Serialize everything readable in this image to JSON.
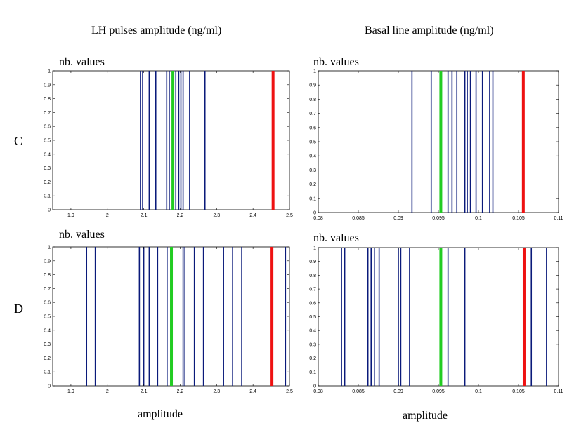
{
  "titles": {
    "left": "LH pulses amplitude  (ng/ml)",
    "right": "Basal line amplitude  (ng/ml)"
  },
  "rows": {
    "top": "C",
    "bottom": "D"
  },
  "xlabels": {
    "left": "amplitude",
    "right": "amplitude"
  },
  "chart_data": [
    {
      "id": "C-left",
      "type": "bar",
      "ylabel": "nb. values",
      "xlim": [
        1.85,
        2.5
      ],
      "ylim": [
        0,
        1
      ],
      "xticks": [
        1.9,
        2.0,
        2.1,
        2.2,
        2.3,
        2.4,
        2.5
      ],
      "xtick_labels": [
        "1.9",
        "2",
        "2.1",
        "2.2",
        "2.3",
        "2.4",
        "2.5"
      ],
      "yticks": [
        0,
        0.1,
        0.2,
        0.3,
        0.4,
        0.5,
        0.6,
        0.7,
        0.8,
        0.9,
        1
      ],
      "ytick_labels": [
        "0",
        "0.1",
        "0.2",
        "0.3",
        "0.4",
        "0.5",
        "0.6",
        "0.7",
        "0.8",
        "0.9",
        "1"
      ],
      "values": [
        2.091,
        2.097,
        2.115,
        2.133,
        2.163,
        2.17,
        2.188,
        2.196,
        2.202,
        2.208,
        2.226,
        2.268
      ],
      "green": 2.18,
      "red": 2.455
    },
    {
      "id": "C-right",
      "type": "bar",
      "ylabel": "nb. values",
      "xlim": [
        0.08,
        0.11
      ],
      "ylim": [
        0,
        1
      ],
      "xticks": [
        0.08,
        0.085,
        0.09,
        0.095,
        0.1,
        0.105,
        0.11
      ],
      "xtick_labels": [
        "0.08",
        "0.085",
        "0.09",
        "0.095",
        "0.1",
        "0.105",
        "0.11"
      ],
      "yticks": [
        0,
        0.1,
        0.2,
        0.3,
        0.4,
        0.5,
        0.6,
        0.7,
        0.8,
        0.9,
        1
      ],
      "ytick_labels": [
        "0",
        "0.1",
        "0.2",
        "0.3",
        "0.4",
        "0.5",
        "0.6",
        "0.7",
        "0.8",
        "0.9",
        "1"
      ],
      "values": [
        0.0917,
        0.0941,
        0.0962,
        0.0967,
        0.0973,
        0.0983,
        0.0986,
        0.099,
        0.0997,
        0.1005,
        0.1014,
        0.1018
      ],
      "green": 0.0953,
      "red": 0.1056
    },
    {
      "id": "D-left",
      "type": "bar",
      "ylabel": "nb. values",
      "xlim": [
        1.85,
        2.5
      ],
      "ylim": [
        0,
        1
      ],
      "xticks": [
        1.9,
        2.0,
        2.1,
        2.2,
        2.3,
        2.4,
        2.5
      ],
      "xtick_labels": [
        "1.9",
        "2",
        "2.1",
        "2.2",
        "2.3",
        "2.4",
        "2.5"
      ],
      "yticks": [
        0,
        0.1,
        0.2,
        0.3,
        0.4,
        0.5,
        0.6,
        0.7,
        0.8,
        0.9,
        1
      ],
      "ytick_labels": [
        "0",
        "0.1",
        "0.2",
        "0.3",
        "0.4",
        "0.5",
        "0.6",
        "0.7",
        "0.8",
        "0.9",
        "1"
      ],
      "values": [
        1.943,
        1.967,
        2.088,
        2.1,
        2.115,
        2.138,
        2.164,
        2.208,
        2.213,
        2.239,
        2.264,
        2.319,
        2.344,
        2.369,
        2.489
      ],
      "green": 2.176,
      "red": 2.452
    },
    {
      "id": "D-right",
      "type": "bar",
      "ylabel": "nb. values",
      "xlim": [
        0.08,
        0.11
      ],
      "ylim": [
        0,
        1
      ],
      "xticks": [
        0.08,
        0.085,
        0.09,
        0.095,
        0.1,
        0.105,
        0.11
      ],
      "xtick_labels": [
        "0.08",
        "0.085",
        "0.09",
        "0.095",
        "0.1",
        "0.105",
        "0.11"
      ],
      "yticks": [
        0,
        0.1,
        0.2,
        0.3,
        0.4,
        0.5,
        0.6,
        0.7,
        0.8,
        0.9,
        1
      ],
      "ytick_labels": [
        "0",
        "0.1",
        "0.2",
        "0.3",
        "0.4",
        "0.5",
        "0.6",
        "0.7",
        "0.8",
        "0.9",
        "1"
      ],
      "values": [
        0.0829,
        0.0833,
        0.0862,
        0.0866,
        0.087,
        0.0876,
        0.09,
        0.0903,
        0.0914,
        0.0962,
        0.0983,
        0.1066,
        0.1085
      ],
      "green": 0.0953,
      "red": 0.1057
    }
  ],
  "colors": {
    "bar": "#0a1a7a",
    "green": "#22cc22",
    "red": "#ee1111"
  }
}
